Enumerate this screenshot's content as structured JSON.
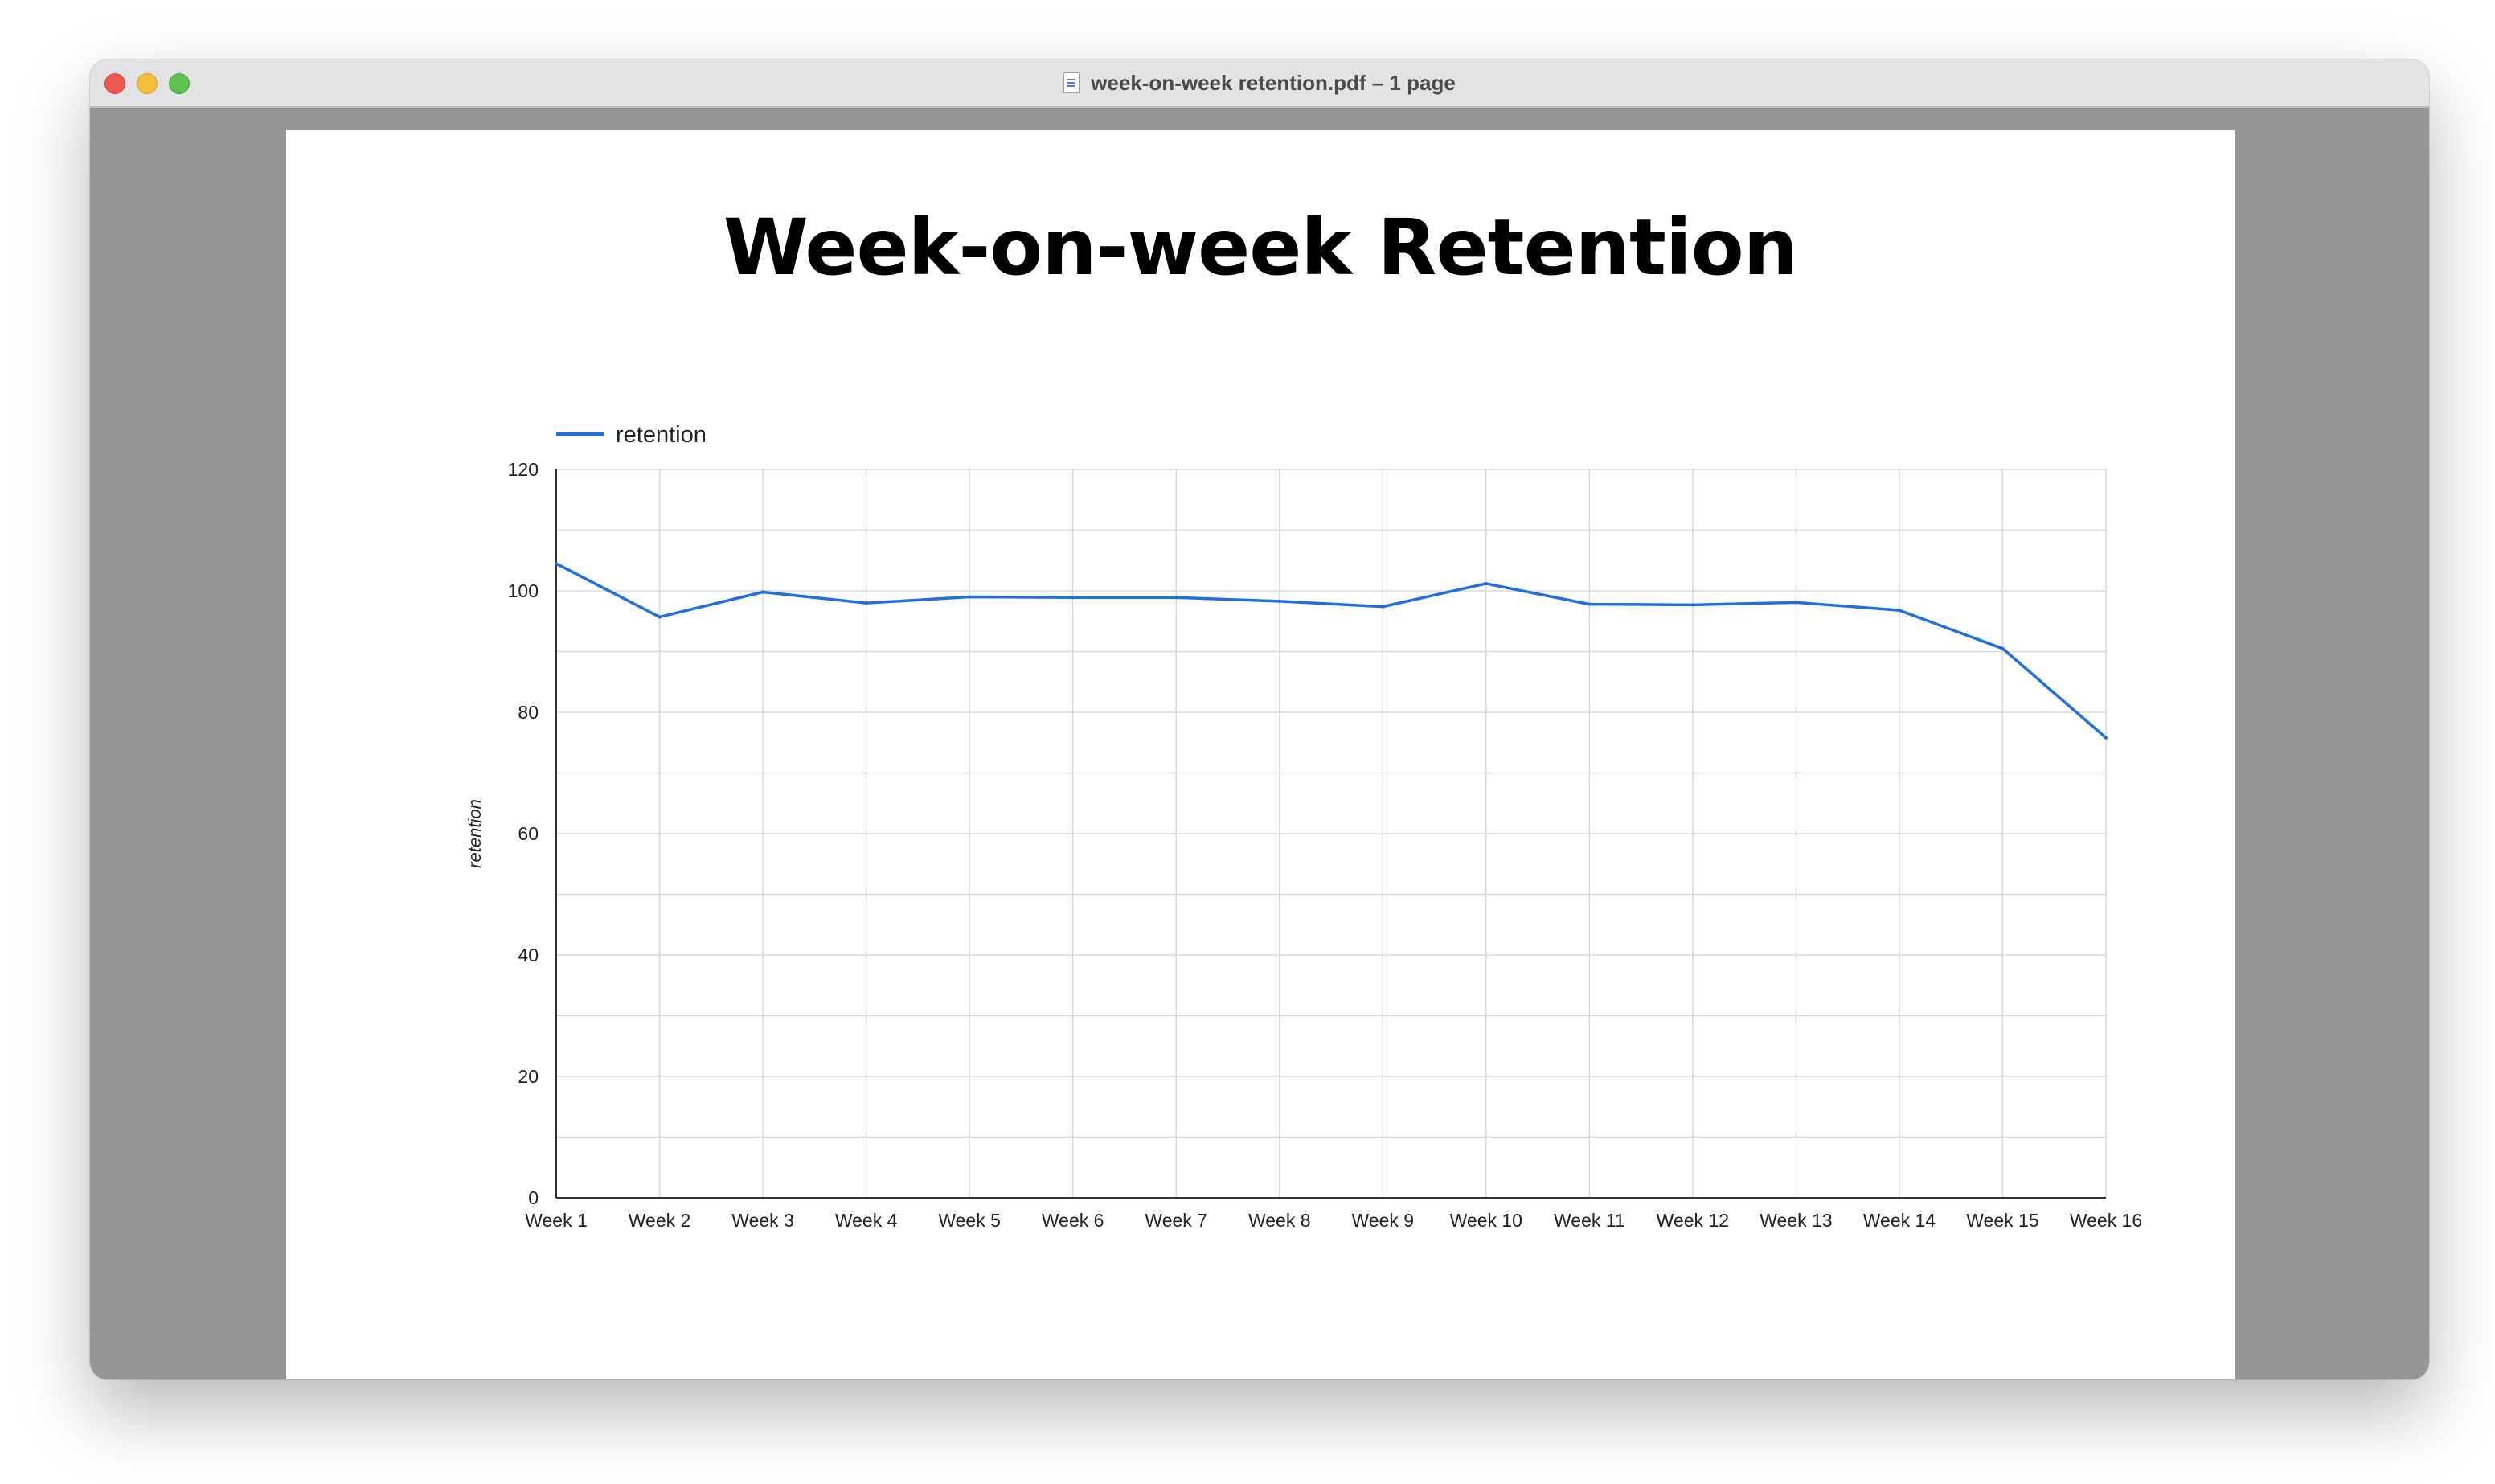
{
  "window": {
    "title": "week-on-week retention.pdf – 1 page",
    "icon": "pdf-document-icon"
  },
  "document": {
    "heading": "Week-on-week Retention"
  },
  "colors": {
    "line": "#1f6fdc",
    "grid": "#d9d9d9",
    "axis": "#333333"
  },
  "chart_data": {
    "type": "line",
    "title": "Week-on-week Retention",
    "xlabel": "",
    "ylabel": "retention",
    "categories": [
      "Week 1",
      "Week 2",
      "Week 3",
      "Week 4",
      "Week 5",
      "Week 6",
      "Week 7",
      "Week 8",
      "Week 9",
      "Week 10",
      "Week 11",
      "Week 12",
      "Week 13",
      "Week 14",
      "Week 15",
      "Week 16"
    ],
    "series": [
      {
        "name": "retention",
        "values": [
          104.5,
          95.7,
          99.8,
          98.0,
          99.0,
          98.9,
          98.9,
          98.3,
          97.4,
          101.2,
          97.8,
          97.7,
          98.1,
          96.8,
          90.5,
          75.8
        ]
      }
    ],
    "ylim": [
      0,
      120
    ],
    "yticks": [
      0,
      20,
      40,
      60,
      80,
      100,
      120
    ],
    "grid": true,
    "legend": "top-left"
  }
}
